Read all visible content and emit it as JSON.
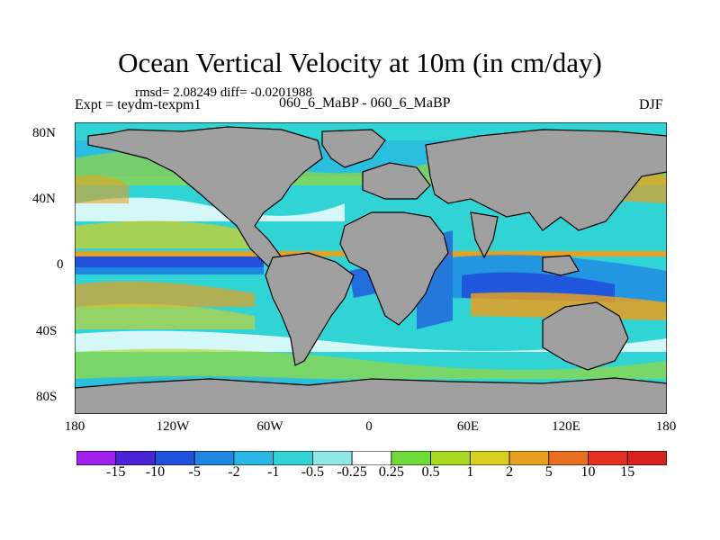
{
  "title": "Ocean Vertical Velocity at 10m (in cm/day)",
  "stats": {
    "rmsd_label": "rmsd= 2.08249",
    "diff_label": "diff= -0.0201988"
  },
  "expt_label": "Expt = teydm-texpm1",
  "run_label": "060_6_MaBP - 060_6_MaBP",
  "season": "DJF",
  "map": {
    "lat_ticks": [
      "80N",
      "40N",
      "0",
      "40S",
      "80S"
    ],
    "lon_ticks": [
      "180",
      "120W",
      "60W",
      "0",
      "60E",
      "120E",
      "180"
    ],
    "land_color": "#a0a0a0"
  },
  "colorbar": {
    "labels": [
      "-15",
      "-10",
      "-5",
      "-2",
      "-1",
      "-0.5",
      "-0.25",
      "0.25",
      "0.5",
      "1",
      "2",
      "5",
      "10",
      "15"
    ],
    "colors": [
      "#a020f0",
      "#4a25d8",
      "#1f51dd",
      "#1f86e2",
      "#2ab6e4",
      "#30d4d4",
      "#8fe8e8",
      "#ffffff",
      "#6fdb38",
      "#a8d81f",
      "#d8d020",
      "#e8a020",
      "#e87020",
      "#e33020"
    ]
  }
}
